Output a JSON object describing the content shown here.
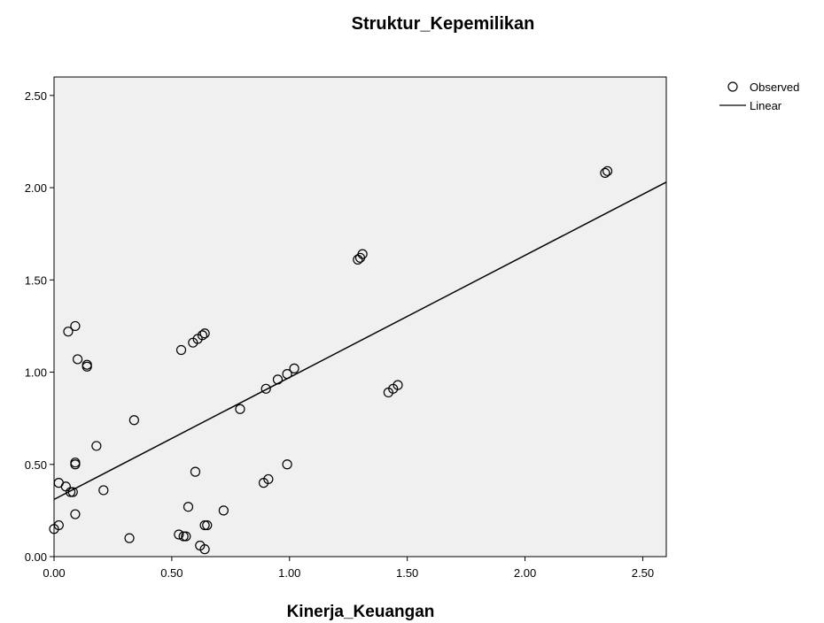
{
  "chart_data": {
    "type": "scatter",
    "title": "Struktur_Kepemilikan",
    "xlabel": "Kinerja_Keuangan",
    "ylabel": "",
    "xlim": [
      0,
      2.6
    ],
    "ylim": [
      0,
      2.6
    ],
    "xticks": [
      "0.00",
      "0.50",
      "1.00",
      "1.50",
      "2.00",
      "2.50"
    ],
    "yticks": [
      "0.00",
      "0.50",
      "1.00",
      "1.50",
      "2.00",
      "2.50"
    ],
    "grid": false,
    "legend_position": "top-right outside",
    "legend": {
      "observed_label": "Observed",
      "linear_label": "Linear"
    },
    "colors": {
      "plot_background": "#f0f0f0",
      "marker_stroke": "#000000",
      "line": "#000000"
    },
    "series": [
      {
        "name": "Observed",
        "kind": "points",
        "x": [
          0.0,
          0.02,
          0.02,
          0.05,
          0.06,
          0.07,
          0.08,
          0.09,
          0.09,
          0.09,
          0.09,
          0.1,
          0.14,
          0.14,
          0.18,
          0.21,
          0.32,
          0.34,
          0.53,
          0.54,
          0.55,
          0.56,
          0.57,
          0.59,
          0.6,
          0.61,
          0.62,
          0.63,
          0.64,
          0.64,
          0.64,
          0.65,
          0.72,
          0.79,
          0.89,
          0.9,
          0.91,
          0.95,
          0.99,
          0.99,
          1.02,
          1.29,
          1.3,
          1.31,
          1.42,
          1.44,
          1.46,
          2.34,
          2.35
        ],
        "y": [
          0.15,
          0.17,
          0.4,
          0.38,
          1.22,
          0.35,
          0.35,
          0.23,
          0.5,
          0.51,
          1.25,
          1.07,
          1.03,
          1.04,
          0.6,
          0.36,
          0.1,
          0.74,
          0.12,
          1.12,
          0.11,
          0.11,
          0.27,
          1.16,
          0.46,
          1.18,
          0.06,
          1.2,
          0.17,
          1.21,
          0.04,
          0.17,
          0.25,
          0.8,
          0.4,
          0.91,
          0.42,
          0.96,
          0.5,
          0.99,
          1.02,
          1.61,
          1.62,
          1.64,
          0.89,
          0.91,
          0.93,
          2.08,
          2.09
        ]
      },
      {
        "name": "Linear",
        "kind": "line",
        "x": [
          0.0,
          2.6
        ],
        "y": [
          0.31,
          2.03
        ]
      }
    ]
  }
}
